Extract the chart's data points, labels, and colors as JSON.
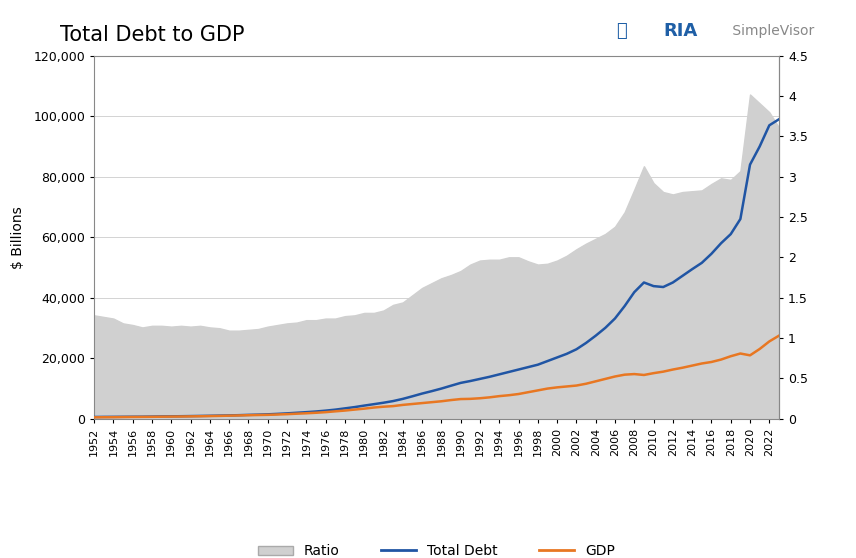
{
  "title": "Total Debt to GDP",
  "ylabel_left": "$ Billions",
  "area_color": "#d0d0d0",
  "total_debt_color": "#2055a4",
  "gdp_color": "#e87722",
  "background_color": "#ffffff",
  "ylim_left": [
    0,
    120000
  ],
  "ylim_right": [
    0,
    4.5
  ],
  "years": [
    1952,
    1953,
    1954,
    1955,
    1956,
    1957,
    1958,
    1959,
    1960,
    1961,
    1962,
    1963,
    1964,
    1965,
    1966,
    1967,
    1968,
    1969,
    1970,
    1971,
    1972,
    1973,
    1974,
    1975,
    1976,
    1977,
    1978,
    1979,
    1980,
    1981,
    1982,
    1983,
    1984,
    1985,
    1986,
    1987,
    1988,
    1989,
    1990,
    1991,
    1992,
    1993,
    1994,
    1995,
    1996,
    1997,
    1998,
    1999,
    2000,
    2001,
    2002,
    2003,
    2004,
    2005,
    2006,
    2007,
    2008,
    2009,
    2010,
    2011,
    2012,
    2013,
    2014,
    2015,
    2016,
    2017,
    2018,
    2019,
    2020,
    2021,
    2022,
    2023
  ],
  "total_debt": [
    500,
    530,
    545,
    565,
    585,
    600,
    640,
    690,
    720,
    755,
    800,
    850,
    900,
    960,
    1020,
    1100,
    1200,
    1280,
    1380,
    1530,
    1700,
    1900,
    2100,
    2320,
    2600,
    2930,
    3350,
    3770,
    4270,
    4740,
    5220,
    5770,
    6490,
    7350,
    8250,
    9050,
    9900,
    10850,
    11780,
    12400,
    13100,
    13800,
    14600,
    15400,
    16200,
    17000,
    17800,
    19000,
    20200,
    21400,
    22900,
    25000,
    27400,
    30000,
    33100,
    37200,
    41800,
    45000,
    43800,
    43500,
    45000,
    47200,
    49400,
    51500,
    54500,
    58000,
    61000,
    66000,
    84000,
    90000,
    97000,
    99000
  ],
  "gdp": [
    390,
    420,
    438,
    480,
    506,
    530,
    558,
    598,
    630,
    658,
    700,
    742,
    800,
    860,
    938,
    1010,
    1090,
    1150,
    1210,
    1320,
    1438,
    1590,
    1728,
    1896,
    2100,
    2370,
    2628,
    2950,
    3260,
    3630,
    3900,
    4100,
    4500,
    4800,
    5100,
    5400,
    5700,
    6100,
    6430,
    6500,
    6700,
    7000,
    7400,
    7700,
    8100,
    8700,
    9300,
    9900,
    10300,
    10600,
    10900,
    11500,
    12300,
    13100,
    13900,
    14500,
    14700,
    14400,
    15000,
    15500,
    16200,
    16800,
    17500,
    18200,
    18700,
    19500,
    20600,
    21500,
    20900,
    23000,
    25500,
    27400
  ],
  "ratio": [
    1.28,
    1.26,
    1.24,
    1.18,
    1.16,
    1.13,
    1.15,
    1.15,
    1.14,
    1.15,
    1.14,
    1.15,
    1.13,
    1.12,
    1.09,
    1.09,
    1.1,
    1.11,
    1.14,
    1.16,
    1.18,
    1.19,
    1.22,
    1.22,
    1.24,
    1.24,
    1.27,
    1.28,
    1.31,
    1.31,
    1.34,
    1.41,
    1.44,
    1.53,
    1.62,
    1.68,
    1.74,
    1.78,
    1.83,
    1.91,
    1.96,
    1.97,
    1.97,
    2.0,
    2.0,
    1.95,
    1.91,
    1.92,
    1.96,
    2.02,
    2.1,
    2.17,
    2.23,
    2.29,
    2.38,
    2.56,
    2.84,
    3.13,
    2.92,
    2.81,
    2.78,
    2.81,
    2.82,
    2.83,
    2.91,
    2.98,
    2.96,
    3.07,
    4.02,
    3.91,
    3.8,
    3.61
  ],
  "yticks_left": [
    0,
    20000,
    40000,
    60000,
    80000,
    100000,
    120000
  ],
  "yticks_right": [
    0,
    0.5,
    1.0,
    1.5,
    2.0,
    2.5,
    3.0,
    3.5,
    4.0,
    4.5
  ],
  "xticks_start": 1952,
  "xticks_end": 2024,
  "xticks_step": 2
}
